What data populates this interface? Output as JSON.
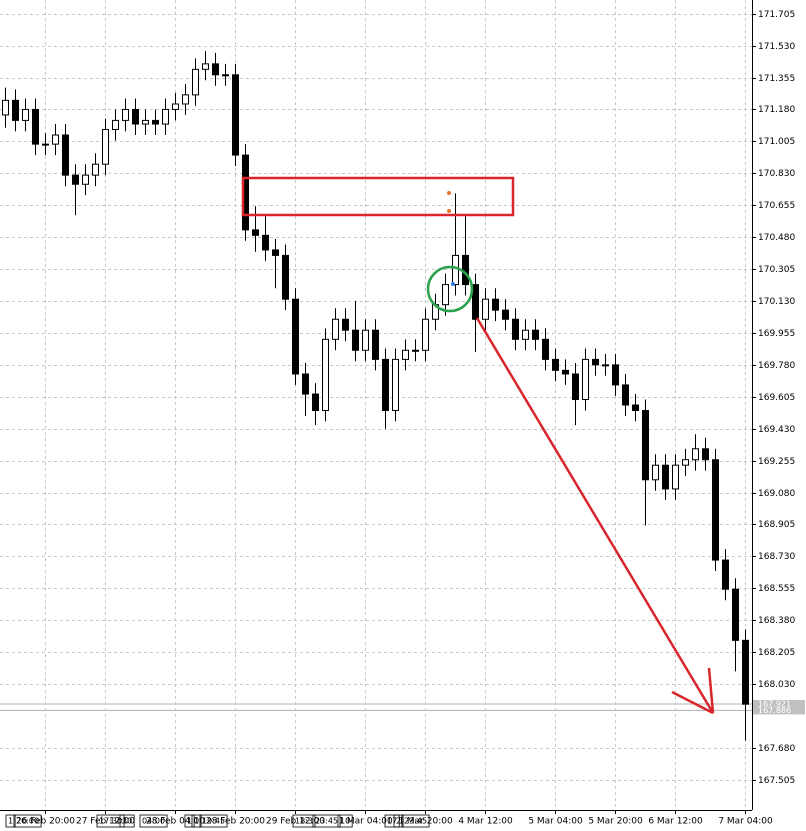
{
  "chart_data": {
    "type": "candlestick",
    "categories": [
      null,
      null,
      null,
      null,
      "26 Feb 20:00",
      null,
      null,
      null,
      null,
      null,
      "27 Feb 12:00",
      null,
      null,
      null,
      null,
      null,
      null,
      "28 Feb 04:00",
      null,
      null,
      null,
      null,
      null,
      "28 Feb 20:00",
      null,
      null,
      null,
      null,
      null,
      "29 Feb 12:00",
      null,
      null,
      null,
      null,
      null,
      null,
      "1 Mar 04:00",
      null,
      null,
      null,
      null,
      null,
      "1 Mar 20:00",
      null,
      null,
      null,
      null,
      null,
      "4 Mar 12:00",
      null,
      null,
      null,
      null,
      null,
      null,
      "5 Mar 04:00",
      null,
      null,
      null,
      null,
      null,
      "5 Mar 20:00",
      null,
      null,
      null,
      null,
      null,
      "6 Mar 12:00",
      null,
      null,
      null,
      null,
      null,
      null,
      "7 Mar 04:00"
    ],
    "open": [
      171.15,
      171.23,
      171.12,
      171.18,
      170.99,
      170.99,
      171.04,
      170.82,
      170.77,
      170.82,
      170.88,
      171.07,
      171.12,
      171.18,
      171.1,
      171.12,
      171.1,
      171.18,
      171.21,
      171.26,
      171.4,
      171.43,
      171.37,
      171.37,
      170.93,
      170.52,
      170.49,
      170.41,
      170.38,
      170.14,
      169.73,
      169.62,
      169.53,
      169.92,
      170.03,
      169.97,
      169.86,
      169.97,
      169.81,
      169.53,
      169.81,
      169.86,
      169.86,
      170.03,
      170.11,
      170.22,
      170.38,
      170.22,
      170.03,
      170.14,
      170.08,
      170.03,
      169.92,
      169.97,
      169.92,
      169.81,
      169.75,
      169.73,
      169.59,
      169.81,
      169.78,
      169.78,
      169.67,
      169.56,
      169.53,
      169.15,
      169.23,
      169.1,
      169.23,
      169.26,
      169.32,
      169.26,
      168.71,
      168.55,
      168.27
    ],
    "high": [
      171.3,
      171.29,
      171.24,
      171.24,
      171.05,
      171.1,
      171.1,
      170.88,
      170.88,
      170.94,
      171.13,
      171.18,
      171.24,
      171.24,
      171.18,
      171.18,
      171.24,
      171.27,
      171.32,
      171.46,
      171.5,
      171.49,
      171.43,
      171.43,
      170.99,
      170.65,
      170.6,
      170.47,
      170.44,
      170.2,
      169.79,
      169.68,
      169.98,
      170.09,
      170.09,
      170.13,
      170.03,
      170.03,
      169.87,
      169.87,
      169.92,
      169.92,
      170.09,
      170.17,
      170.28,
      170.72,
      170.6,
      170.28,
      170.2,
      170.2,
      170.14,
      170.09,
      170.03,
      170.03,
      169.98,
      169.87,
      169.81,
      169.79,
      169.87,
      169.87,
      169.84,
      169.84,
      169.73,
      169.62,
      169.59,
      169.29,
      169.29,
      169.29,
      169.32,
      169.4,
      169.38,
      169.32,
      168.77,
      168.61,
      168.33
    ],
    "low": [
      171.08,
      171.06,
      171.06,
      170.93,
      170.93,
      170.93,
      170.76,
      170.6,
      170.71,
      170.76,
      170.82,
      171.01,
      171.06,
      171.04,
      171.04,
      171.04,
      171.04,
      171.12,
      171.15,
      171.2,
      171.34,
      171.31,
      171.31,
      170.87,
      170.46,
      170.4,
      170.35,
      170.2,
      170.08,
      169.67,
      169.5,
      169.45,
      169.47,
      169.86,
      169.91,
      169.8,
      169.8,
      169.75,
      169.43,
      169.47,
      169.75,
      169.8,
      169.8,
      169.97,
      170.05,
      170.16,
      170.16,
      169.85,
      169.97,
      170.02,
      169.97,
      169.86,
      169.86,
      169.86,
      169.75,
      169.69,
      169.67,
      169.45,
      169.53,
      169.72,
      169.72,
      169.61,
      169.5,
      169.47,
      168.9,
      169.09,
      169.04,
      169.04,
      169.17,
      169.2,
      169.2,
      168.65,
      168.49,
      168.1,
      167.72
    ],
    "close": [
      171.23,
      171.12,
      171.18,
      170.99,
      170.99,
      171.04,
      170.82,
      170.77,
      170.82,
      170.88,
      171.07,
      171.12,
      171.18,
      171.1,
      171.12,
      171.1,
      171.18,
      171.21,
      171.26,
      171.4,
      171.43,
      171.37,
      171.37,
      170.93,
      170.52,
      170.49,
      170.41,
      170.38,
      170.14,
      169.73,
      169.62,
      169.53,
      169.92,
      170.03,
      169.97,
      169.86,
      169.97,
      169.81,
      169.53,
      169.81,
      169.86,
      169.86,
      170.03,
      170.11,
      170.22,
      170.38,
      170.22,
      170.03,
      170.14,
      170.08,
      170.03,
      169.92,
      169.97,
      169.92,
      169.81,
      169.75,
      169.73,
      169.59,
      169.81,
      169.78,
      169.78,
      169.67,
      169.56,
      169.53,
      169.15,
      169.23,
      169.1,
      169.23,
      169.26,
      169.32,
      169.26,
      168.71,
      168.55,
      168.27,
      167.92
    ],
    "up_color": "#ffffff",
    "down_color": "#000000",
    "ylim": [
      167.34,
      171.78
    ],
    "yticks": [
      171.705,
      {
        "value": 171.53,
        "label": "171.530"
      },
      171.355,
      {
        "value": 171.18,
        "label": "171.180"
      },
      171.005,
      {
        "value": 170.83,
        "label": "170.830"
      },
      170.655,
      {
        "value": 170.48,
        "label": "170.480"
      },
      170.305,
      {
        "value": 170.13,
        "label": "170.130"
      },
      169.955,
      {
        "value": 169.78,
        "label": "169.780"
      },
      169.605,
      {
        "value": 169.43,
        "label": "169.430"
      },
      169.255,
      {
        "value": 169.08,
        "label": "169.080"
      },
      168.905,
      {
        "value": 168.73,
        "label": "168.730"
      },
      168.555,
      {
        "value": 168.38,
        "label": "168.380"
      },
      168.205,
      {
        "value": 168.03,
        "label": "168.030"
      },
      {
        "value": 167.68,
        "label": "167.680"
      },
      167.505
    ],
    "price_lines": [
      167.921,
      167.886
    ],
    "grid": true,
    "time_markers": [
      "1",
      "20:00",
      "17:30",
      "30",
      "04:00",
      "1",
      "1",
      "19:45",
      "18:3",
      "23:45",
      "10",
      "17",
      "2",
      "23:45"
    ]
  }
}
